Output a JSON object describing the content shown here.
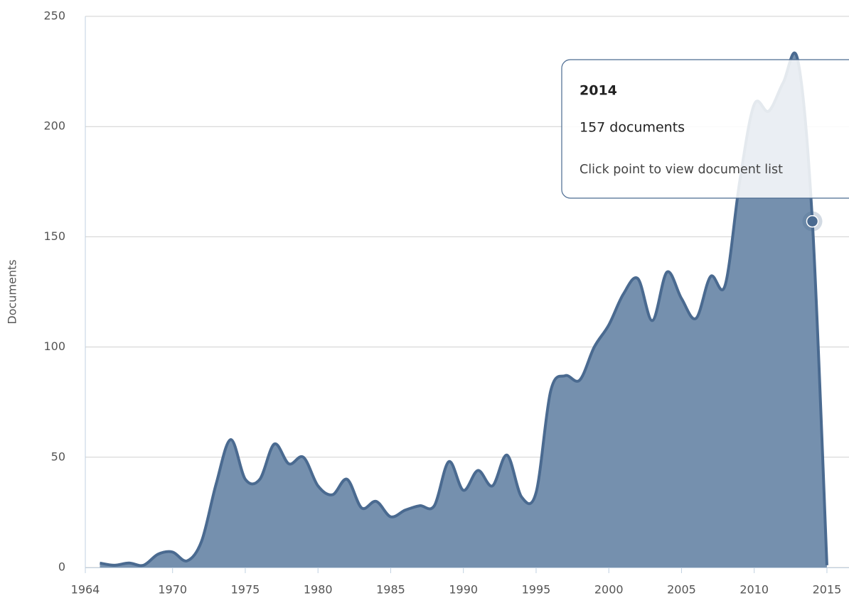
{
  "chart_data": {
    "type": "area",
    "y_axis_label": "Documents",
    "x": [
      1965,
      1966,
      1967,
      1968,
      1969,
      1970,
      1971,
      1972,
      1973,
      1974,
      1975,
      1976,
      1977,
      1978,
      1979,
      1980,
      1981,
      1982,
      1983,
      1984,
      1985,
      1986,
      1987,
      1988,
      1989,
      1990,
      1991,
      1992,
      1993,
      1994,
      1995,
      1996,
      1997,
      1998,
      1999,
      2000,
      2001,
      2002,
      2003,
      2004,
      2005,
      2006,
      2007,
      2008,
      2009,
      2010,
      2011,
      2012,
      2013,
      2014,
      2015
    ],
    "series": [
      {
        "name": "Documents",
        "color": "#4a6a90",
        "fill": "#7590ae",
        "values": [
          2,
          1,
          2,
          1,
          6,
          7,
          3,
          12,
          38,
          58,
          40,
          40,
          56,
          47,
          50,
          37,
          33,
          40,
          27,
          30,
          23,
          26,
          28,
          28,
          48,
          35,
          44,
          37,
          51,
          32,
          34,
          80,
          87,
          85,
          100,
          110,
          124,
          131,
          112,
          134,
          122,
          113,
          132,
          128,
          175,
          210,
          207,
          220,
          230,
          157,
          1
        ]
      }
    ],
    "xlim": [
      1964,
      2015.1
    ],
    "xticks": [
      1964,
      1970,
      1975,
      1980,
      1985,
      1990,
      1995,
      2000,
      2005,
      2010,
      2015
    ],
    "ylim": [
      0,
      250
    ],
    "yticks": [
      0,
      50,
      100,
      150,
      200,
      250
    ],
    "grid": true,
    "highlight_index": 49,
    "tooltip": {
      "title": "2014",
      "line1": "157 documents",
      "line2": "Click point to view document list"
    }
  }
}
